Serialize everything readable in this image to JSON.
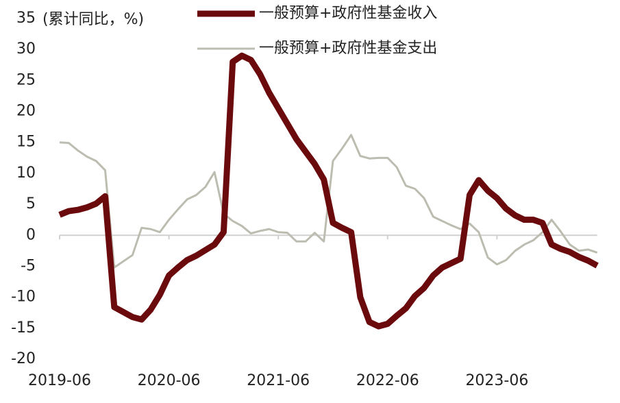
{
  "chart_data": {
    "type": "line",
    "y_label": "(累计同比，%)",
    "categories": [
      "2019-06",
      null,
      null,
      null,
      null,
      null,
      null,
      null,
      null,
      null,
      null,
      null,
      "2020-06",
      null,
      null,
      null,
      null,
      null,
      null,
      null,
      null,
      null,
      null,
      null,
      "2021-06",
      null,
      null,
      null,
      null,
      null,
      null,
      null,
      null,
      null,
      null,
      null,
      "2022-06",
      null,
      null,
      null,
      null,
      null,
      null,
      null,
      null,
      null,
      null,
      null,
      "2023-06",
      null,
      null,
      null,
      null,
      null,
      null,
      null,
      null,
      null,
      null,
      null
    ],
    "series": [
      {
        "name": "一般预算+政府性基金收入",
        "color": "#6b0a0c",
        "width": 9,
        "values": [
          3.3,
          3.9,
          4.1,
          4.5,
          5.1,
          6.3,
          -11.6,
          -12.4,
          -13.2,
          -13.6,
          -12,
          -9.6,
          -6.5,
          -5.2,
          -4,
          -3.3,
          -2.4,
          -1.5,
          0.5,
          28,
          29,
          28.3,
          26,
          23,
          20.5,
          18,
          15.5,
          13.5,
          11.5,
          9,
          2,
          1.2,
          0.5,
          -10,
          -14,
          -14.7,
          -14.3,
          -13,
          -11.8,
          -9.8,
          -8.5,
          -6.5,
          -5.2,
          -4.5,
          -3.8,
          6.5,
          8.9,
          7.2,
          6,
          4.3,
          3.2,
          2.5,
          2.5,
          2,
          -1.5,
          -2.2,
          -2.7,
          -3.5,
          -4.1,
          -4.9
        ]
      },
      {
        "name": "一般预算+政府性基金支出",
        "color": "#bdbcb0",
        "width": 3,
        "values": [
          15,
          14.9,
          13.7,
          12.7,
          12,
          10.5,
          -5.2,
          -4.2,
          -3.2,
          1.2,
          1,
          0.5,
          2.5,
          4.2,
          5.8,
          6.5,
          7.8,
          10.2,
          3.5,
          2.3,
          1.5,
          0.3,
          0.7,
          1,
          0.5,
          0.4,
          -1,
          -1,
          0.4,
          -1,
          12,
          14,
          16.2,
          12.8,
          12.4,
          12.5,
          12.5,
          11,
          8,
          7.5,
          6,
          3,
          2.3,
          1.6,
          1,
          1.9,
          0.5,
          -3.6,
          -4.7,
          -4,
          -2.5,
          -1.5,
          -0.8,
          0.5,
          2.5,
          0.6,
          -1.5,
          -2.5,
          -2.3,
          -2.8
        ]
      }
    ],
    "ylim": [
      -20,
      35
    ],
    "yticks": [
      -20,
      -15,
      -10,
      -5,
      0,
      5,
      10,
      15,
      20,
      25,
      30,
      35
    ],
    "grid": false
  }
}
